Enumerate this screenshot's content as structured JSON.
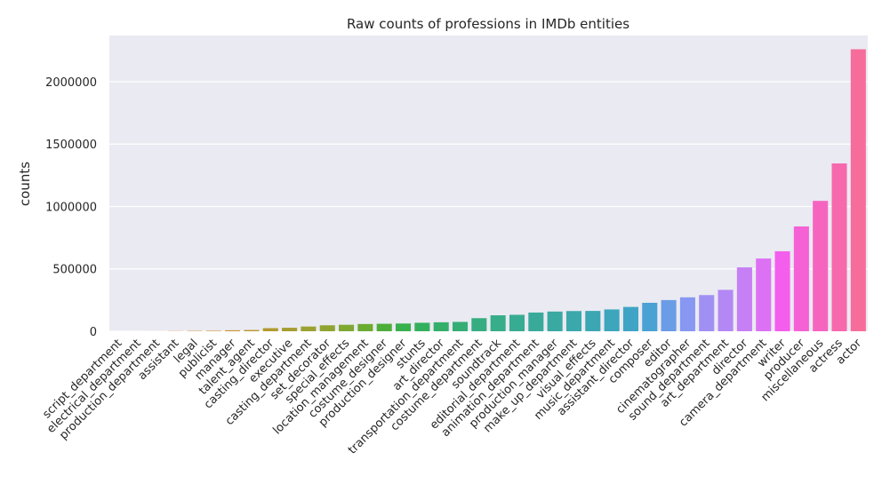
{
  "chart_data": {
    "type": "bar",
    "title": "Raw counts of professions in IMDb entities",
    "xlabel": "",
    "ylabel": "counts",
    "ylim": [
      0,
      2370000
    ],
    "yticks": [
      0,
      500000,
      1000000,
      1500000,
      2000000
    ],
    "ytick_labels": [
      "0",
      "500000",
      "1000000",
      "1500000",
      "2000000"
    ],
    "grid": true,
    "background": "#eaeaf2",
    "categories": [
      "script_department",
      "electrical_department",
      "production_department",
      "assistant",
      "legal",
      "publicist",
      "manager",
      "talent_agent",
      "casting_director",
      "executive",
      "casting_department",
      "set_decorator",
      "special_effects",
      "location_management",
      "costume_designer",
      "production_designer",
      "stunts",
      "art_director",
      "transportation_department",
      "costume_department",
      "soundtrack",
      "editorial_department",
      "animation_department",
      "production_manager",
      "make_up_department",
      "visual_effects",
      "music_department",
      "assistant_director",
      "composer",
      "editor",
      "cinematographer",
      "sound_department",
      "art_department",
      "director",
      "camera_department",
      "writer",
      "producer",
      "miscellaneous",
      "actress",
      "actor"
    ],
    "values": [
      50,
      100,
      300,
      1500,
      3000,
      4000,
      8000,
      10000,
      25000,
      28000,
      38000,
      48000,
      52000,
      58000,
      60000,
      62000,
      68000,
      72000,
      75000,
      105000,
      128000,
      132000,
      150000,
      158000,
      162000,
      163000,
      175000,
      195000,
      228000,
      250000,
      272000,
      290000,
      332000,
      512000,
      583000,
      641000,
      840000,
      1045000,
      1345000,
      2260000
    ],
    "colors": [
      "#f77189",
      "#f7754f",
      "#f77a37",
      "#e7852f",
      "#da8a31",
      "#cf8f31",
      "#c59431",
      "#bb9731",
      "#b19a31",
      "#a69d31",
      "#9ba131",
      "#8ea431",
      "#7ea831",
      "#6aab31",
      "#4dae39",
      "#37b04d",
      "#33b05d",
      "#34af6b",
      "#35ae76",
      "#36ad80",
      "#37ad89",
      "#38ac92",
      "#39aa9a",
      "#3aa9a2",
      "#3ba8ab",
      "#3ca7b3",
      "#3da6bc",
      "#3fa4c6",
      "#4aa1d4",
      "#6b9ce6",
      "#8797f2",
      "#a090f4",
      "#b488f4",
      "#c67ff4",
      "#dc72f3",
      "#f45eed",
      "#f562d5",
      "#f565c0",
      "#f669ad",
      "#f66d9b"
    ]
  }
}
